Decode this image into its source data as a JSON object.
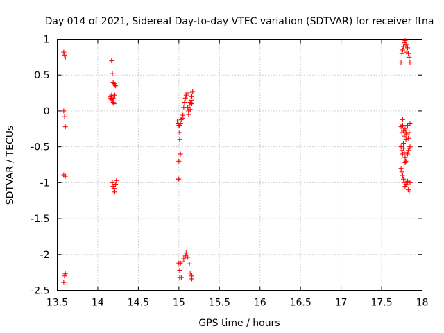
{
  "chart_data": {
    "type": "scatter",
    "title": "Day 014 of 2021, Sidereal Day-to-day VTEC variation (SDTVAR) for receiver ftna",
    "xlabel": "GPS time / hours",
    "ylabel": "SDTVAR / TECUs",
    "xlim": [
      13.5,
      18
    ],
    "ylim": [
      -2.5,
      1
    ],
    "xticks": [
      13.5,
      14,
      14.5,
      15,
      15.5,
      16,
      16.5,
      17,
      17.5,
      18
    ],
    "yticks": [
      1,
      0.5,
      0,
      -0.5,
      -1,
      -1.5,
      -2,
      -2.5
    ],
    "xtick_labels": [
      "13.5",
      "14",
      "14.5",
      "15",
      "15.5",
      "16",
      "16.5",
      "17",
      "17.5",
      "18"
    ],
    "ytick_labels": [
      "1",
      "0.5",
      "0",
      "-0.5",
      "-1",
      "-1.5",
      "-2",
      "-2.5"
    ],
    "grid": true,
    "marker": "+",
    "marker_color": "#ff0000",
    "series": [
      {
        "name": "SDTVAR",
        "points": [
          [
            13.58,
            0.82
          ],
          [
            13.59,
            0.78
          ],
          [
            13.6,
            0.74
          ],
          [
            13.58,
            0.0
          ],
          [
            13.59,
            -0.08
          ],
          [
            13.6,
            -0.22
          ],
          [
            13.58,
            -0.89
          ],
          [
            13.6,
            -0.91
          ],
          [
            13.59,
            -2.3
          ],
          [
            13.6,
            -2.27
          ],
          [
            13.58,
            -2.39
          ],
          [
            14.15,
            0.2
          ],
          [
            14.16,
            0.18
          ],
          [
            14.17,
            0.16
          ],
          [
            14.18,
            0.14
          ],
          [
            14.19,
            0.12
          ],
          [
            14.2,
            0.1
          ],
          [
            14.17,
            0.22
          ],
          [
            14.21,
            0.22
          ],
          [
            14.19,
            0.18
          ],
          [
            14.17,
            0.7
          ],
          [
            14.18,
            0.52
          ],
          [
            14.19,
            0.4
          ],
          [
            14.2,
            0.38
          ],
          [
            14.21,
            0.36
          ],
          [
            14.22,
            0.35
          ],
          [
            14.18,
            -1.0
          ],
          [
            14.19,
            -1.05
          ],
          [
            14.2,
            -1.08
          ],
          [
            14.21,
            -1.13
          ],
          [
            14.22,
            -1.02
          ],
          [
            14.23,
            -0.97
          ],
          [
            14.98,
            -0.14
          ],
          [
            14.99,
            -0.18
          ],
          [
            15.0,
            -0.2
          ],
          [
            15.01,
            -0.2
          ],
          [
            15.02,
            -0.18
          ],
          [
            15.03,
            -0.12
          ],
          [
            15.04,
            -0.1
          ],
          [
            15.05,
            -0.06
          ],
          [
            15.06,
            0.05
          ],
          [
            15.07,
            0.12
          ],
          [
            15.08,
            0.18
          ],
          [
            15.09,
            0.22
          ],
          [
            15.1,
            0.25
          ],
          [
            15.11,
            0.05
          ],
          [
            15.12,
            0.0
          ],
          [
            15.13,
            0.08
          ],
          [
            15.14,
            0.12
          ],
          [
            15.15,
            0.15
          ],
          [
            15.16,
            0.2
          ],
          [
            15.17,
            0.27
          ],
          [
            15.15,
            0.26
          ],
          [
            15.12,
            -0.05
          ],
          [
            15.14,
            0.02
          ],
          [
            15.16,
            0.1
          ],
          [
            15.01,
            -0.3
          ],
          [
            15.01,
            -0.4
          ],
          [
            15.02,
            -0.6
          ],
          [
            15.0,
            -0.7
          ],
          [
            14.99,
            -0.95
          ],
          [
            15.0,
            -0.95
          ],
          [
            15.0,
            -2.12
          ],
          [
            15.02,
            -2.12
          ],
          [
            15.04,
            -2.1
          ],
          [
            15.06,
            -2.06
          ],
          [
            15.08,
            -2.02
          ],
          [
            15.09,
            -1.98
          ],
          [
            15.1,
            -2.04
          ],
          [
            15.11,
            -2.04
          ],
          [
            15.13,
            -2.13
          ],
          [
            15.14,
            -2.26
          ],
          [
            15.16,
            -2.3
          ],
          [
            15.16,
            -2.34
          ],
          [
            15.01,
            -2.22
          ],
          [
            15.01,
            -2.32
          ],
          [
            15.03,
            -2.32
          ],
          [
            17.74,
            0.68
          ],
          [
            17.75,
            0.8
          ],
          [
            17.76,
            0.85
          ],
          [
            17.77,
            0.9
          ],
          [
            17.78,
            0.95
          ],
          [
            17.79,
            0.98
          ],
          [
            17.8,
            0.92
          ],
          [
            17.82,
            0.88
          ],
          [
            17.83,
            0.8
          ],
          [
            17.84,
            0.75
          ],
          [
            17.85,
            0.68
          ],
          [
            17.81,
            0.82
          ],
          [
            17.74,
            -0.22
          ],
          [
            17.75,
            -0.3
          ],
          [
            17.76,
            -0.12
          ],
          [
            17.77,
            -0.28
          ],
          [
            17.78,
            -0.35
          ],
          [
            17.79,
            -0.25
          ],
          [
            17.8,
            -0.4
          ],
          [
            17.81,
            -0.32
          ],
          [
            17.82,
            -0.2
          ],
          [
            17.83,
            -0.38
          ],
          [
            17.84,
            -0.3
          ],
          [
            17.85,
            -0.18
          ],
          [
            17.76,
            -0.2
          ],
          [
            17.8,
            -0.3
          ],
          [
            17.74,
            -0.5
          ],
          [
            17.75,
            -0.55
          ],
          [
            17.76,
            -0.6
          ],
          [
            17.77,
            -0.52
          ],
          [
            17.78,
            -0.58
          ],
          [
            17.79,
            -0.65
          ],
          [
            17.8,
            -0.7
          ],
          [
            17.82,
            -0.6
          ],
          [
            17.83,
            -0.55
          ],
          [
            17.84,
            -0.52
          ],
          [
            17.85,
            -0.5
          ],
          [
            17.77,
            -0.45
          ],
          [
            17.74,
            -0.8
          ],
          [
            17.75,
            -0.85
          ],
          [
            17.76,
            -0.9
          ],
          [
            17.77,
            -0.95
          ],
          [
            17.78,
            -1.0
          ],
          [
            17.79,
            -1.05
          ],
          [
            17.8,
            -1.02
          ],
          [
            17.82,
            -0.98
          ],
          [
            17.83,
            -1.1
          ],
          [
            17.84,
            -1.12
          ],
          [
            17.85,
            -1.0
          ],
          [
            17.79,
            -0.72
          ]
        ]
      }
    ]
  }
}
